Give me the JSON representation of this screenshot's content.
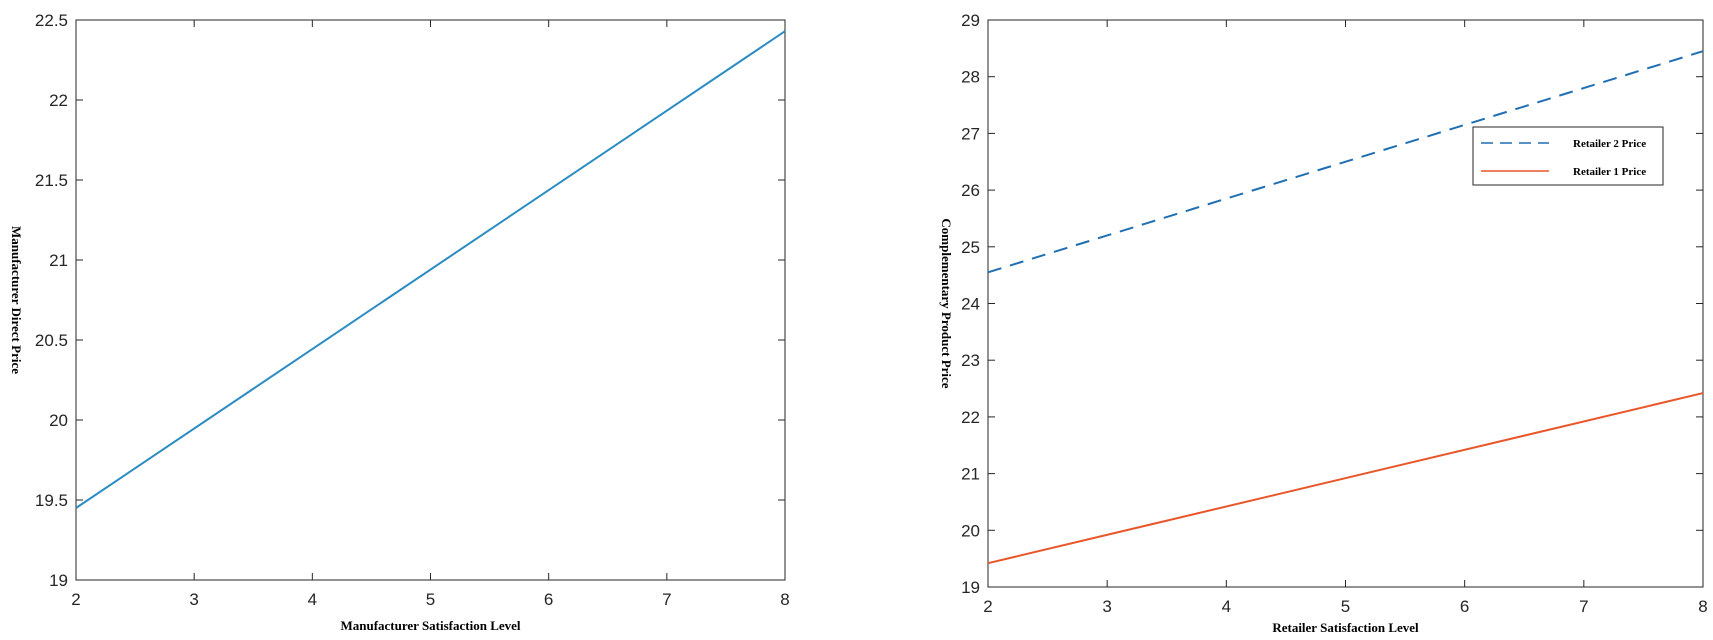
{
  "chart_data": [
    {
      "type": "line",
      "title": "",
      "xlabel": "Manufacturer Satisfaction Level",
      "ylabel": "Manufacturer Direct Price",
      "xlim": [
        2,
        8
      ],
      "ylim": [
        19,
        22.5
      ],
      "xticks": [
        "2",
        "3",
        "4",
        "5",
        "6",
        "7",
        "8"
      ],
      "yticks": [
        "19",
        "19.5",
        "20",
        "20.5",
        "21",
        "21.5",
        "22",
        "22.5"
      ],
      "grid": false,
      "series": [
        {
          "x": [
            2,
            8
          ],
          "y": [
            19.45,
            22.43
          ],
          "color": "#2b8cc4",
          "style": "solid"
        }
      ]
    },
    {
      "type": "line",
      "title": "",
      "xlabel": "Retailer Satisfaction Level",
      "ylabel": "Complementary Product Price",
      "xlim": [
        2,
        8
      ],
      "ylim": [
        19,
        29
      ],
      "xticks": [
        "2",
        "3",
        "4",
        "5",
        "6",
        "7",
        "8"
      ],
      "yticks": [
        "19",
        "20",
        "21",
        "22",
        "23",
        "24",
        "25",
        "26",
        "27",
        "28",
        "29"
      ],
      "grid": false,
      "legend": "top-right",
      "series": [
        {
          "name": "Retailer 2 Price",
          "x": [
            2,
            8
          ],
          "y": [
            24.55,
            28.45
          ],
          "color": "#1f6fb2",
          "style": "dashed"
        },
        {
          "name": "Retailer 1 Price",
          "x": [
            2,
            8
          ],
          "y": [
            19.42,
            22.42
          ],
          "color": "#e8562a",
          "style": "solid"
        }
      ]
    }
  ]
}
